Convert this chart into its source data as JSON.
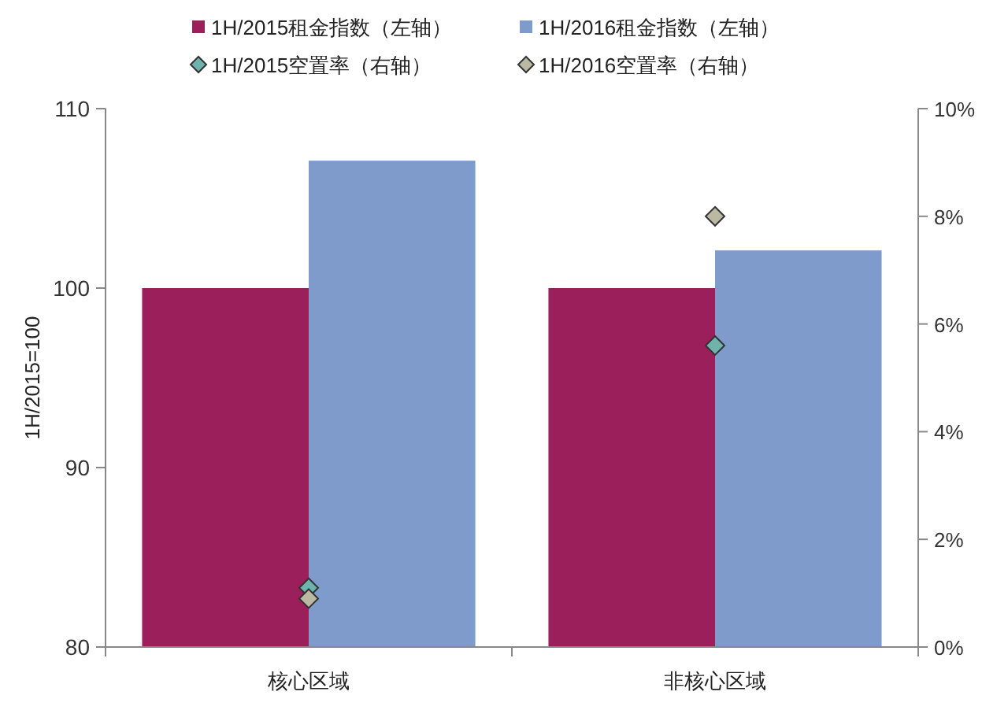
{
  "chart_data": {
    "type": "bar",
    "categories": [
      "核心区域",
      "非核心区域"
    ],
    "series": [
      {
        "name": "1H/2015租金指数（左轴）",
        "color": "#9b1f5a",
        "values": [
          100,
          100
        ]
      },
      {
        "name": "1H/2016租金指数（左轴）",
        "color": "#7f9bcc",
        "values": [
          107.1,
          102.1
        ]
      },
      {
        "name": "1H/2015空置率（右轴）",
        "type": "scatter",
        "axis": "y2",
        "color": "#6fb3ad",
        "x": [
          "核心区域",
          "非核心区域"
        ],
        "values": [
          1.1,
          5.6
        ]
      },
      {
        "name": "1H/2016空置率（右轴）",
        "type": "scatter",
        "axis": "y2",
        "color": "#bcb9a2",
        "x": [
          "核心区域",
          "非核心区域"
        ],
        "values": [
          0.9,
          8.0
        ]
      }
    ],
    "ylabel": "1H/2015=100",
    "ylim": [
      80,
      110
    ],
    "yticks": [
      80,
      90,
      100,
      110
    ],
    "y2lim": [
      0,
      10
    ],
    "y2ticks": [
      {
        "value": 0,
        "label": "0%"
      },
      {
        "value": 2,
        "label": "2%"
      },
      {
        "value": 4,
        "label": "4%"
      },
      {
        "value": 6,
        "label": "6%"
      },
      {
        "value": 8,
        "label": "8%"
      },
      {
        "value": 10,
        "label": "10%"
      }
    ],
    "marker": "diamond",
    "legend": "top",
    "grid": false
  }
}
